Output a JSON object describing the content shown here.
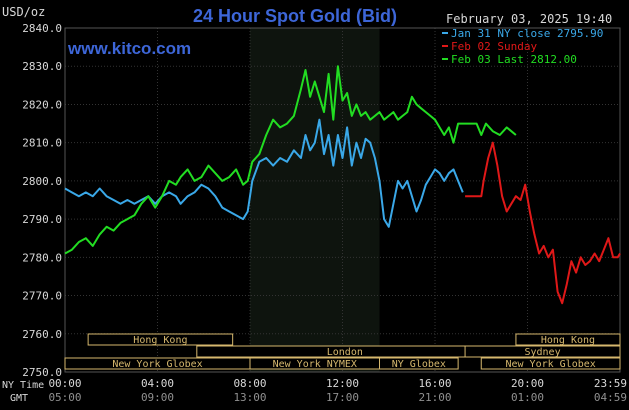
{
  "header": {
    "title": "24 Hour Spot Gold (Bid)",
    "date": "February 03, 2025 19:40",
    "watermark": "www.kitco.com",
    "units": "USD/oz"
  },
  "legend": [
    {
      "label": "Jan 31 NY close 2795.90",
      "color": "#3aa8e8"
    },
    {
      "label": "Feb 02 Sunday",
      "color": "#e01818"
    },
    {
      "label": "Feb 03 Last 2812.00",
      "color": "#22dd22"
    }
  ],
  "axis_labels": {
    "nytime": "NY Time",
    "gmt": "GMT"
  },
  "markets": [
    {
      "name": "Hong Kong",
      "start": 1.0,
      "end": 7.25
    },
    {
      "name": "Hong Kong",
      "start": 19.5,
      "end": 24.0
    },
    {
      "name": "London",
      "start": 5.7,
      "end": 18.5
    },
    {
      "name": "Sydney",
      "start": 17.3,
      "end": 24.0
    },
    {
      "name": "New York Globex",
      "start": 0.0,
      "end": 8.0
    },
    {
      "name": "New York NYMEX",
      "start": 8.0,
      "end": 13.6
    },
    {
      "name": "NY Globex",
      "start": 13.6,
      "end": 17.0
    },
    {
      "name": "New York Globex",
      "start": 18.0,
      "end": 24.0
    }
  ],
  "colors": {
    "background": "#000000",
    "plot_bg": "#000000",
    "shade": "#0e140e",
    "grid": "#333333",
    "text": "#d8d8d8",
    "title": "#3d66d8",
    "watermark": "#3d66d8",
    "market_box": "#d6b86e"
  },
  "chart_data": {
    "type": "line",
    "title": "24 Hour Spot Gold (Bid)",
    "ylabel": "USD/oz",
    "ylim": [
      2750,
      2840
    ],
    "yticks": [
      2750,
      2760,
      2770,
      2780,
      2790,
      2800,
      2810,
      2820,
      2830,
      2840
    ],
    "ytick_labels": [
      "2750.0",
      "2760.0",
      "2770.0",
      "2780.0",
      "2790.0",
      "2800.0",
      "2810.0",
      "2820.0",
      "2830.0",
      "2840.0"
    ],
    "xlim": [
      0,
      24
    ],
    "xticks": [
      0,
      4,
      8,
      12,
      16,
      20,
      24
    ],
    "xtick_labels_ny": [
      "00:00",
      "04:00",
      "08:00",
      "12:00",
      "16:00",
      "20:00",
      "23:59"
    ],
    "xtick_labels_gmt": [
      "05:00",
      "09:00",
      "13:00",
      "17:00",
      "21:00",
      "01:00",
      "04:59"
    ],
    "shaded_range": [
      8.0,
      13.6
    ],
    "grid": true,
    "series": [
      {
        "name": "Jan 31 NY close 2795.90",
        "color": "#3aa8e8",
        "points": [
          [
            0,
            2798
          ],
          [
            0.3,
            2797
          ],
          [
            0.6,
            2796
          ],
          [
            0.9,
            2797
          ],
          [
            1.2,
            2796
          ],
          [
            1.5,
            2798
          ],
          [
            1.8,
            2796
          ],
          [
            2.1,
            2795
          ],
          [
            2.4,
            2794
          ],
          [
            2.7,
            2795
          ],
          [
            3.0,
            2794
          ],
          [
            3.3,
            2795
          ],
          [
            3.6,
            2796
          ],
          [
            3.9,
            2794
          ],
          [
            4.2,
            2796
          ],
          [
            4.5,
            2797
          ],
          [
            4.8,
            2796
          ],
          [
            5.0,
            2794
          ],
          [
            5.3,
            2796
          ],
          [
            5.6,
            2797
          ],
          [
            5.9,
            2799
          ],
          [
            6.2,
            2798
          ],
          [
            6.5,
            2796
          ],
          [
            6.8,
            2793
          ],
          [
            7.1,
            2792
          ],
          [
            7.4,
            2791
          ],
          [
            7.7,
            2790
          ],
          [
            7.9,
            2792
          ],
          [
            8.1,
            2800
          ],
          [
            8.4,
            2805
          ],
          [
            8.7,
            2806
          ],
          [
            9.0,
            2804
          ],
          [
            9.3,
            2806
          ],
          [
            9.6,
            2805
          ],
          [
            9.9,
            2808
          ],
          [
            10.2,
            2806
          ],
          [
            10.4,
            2812
          ],
          [
            10.6,
            2808
          ],
          [
            10.8,
            2810
          ],
          [
            11.0,
            2816
          ],
          [
            11.2,
            2807
          ],
          [
            11.4,
            2812
          ],
          [
            11.6,
            2804
          ],
          [
            11.8,
            2812
          ],
          [
            12.0,
            2806
          ],
          [
            12.2,
            2814
          ],
          [
            12.4,
            2804
          ],
          [
            12.6,
            2810
          ],
          [
            12.8,
            2806
          ],
          [
            13.0,
            2811
          ],
          [
            13.2,
            2810
          ],
          [
            13.4,
            2806
          ],
          [
            13.6,
            2800
          ],
          [
            13.8,
            2790
          ],
          [
            14.0,
            2788
          ],
          [
            14.2,
            2794
          ],
          [
            14.4,
            2800
          ],
          [
            14.6,
            2798
          ],
          [
            14.8,
            2800
          ],
          [
            15.0,
            2796
          ],
          [
            15.2,
            2792
          ],
          [
            15.4,
            2795
          ],
          [
            15.6,
            2799
          ],
          [
            15.8,
            2801
          ],
          [
            16.0,
            2803
          ],
          [
            16.2,
            2802
          ],
          [
            16.4,
            2800
          ],
          [
            16.6,
            2802
          ],
          [
            16.8,
            2803
          ],
          [
            17.0,
            2800
          ],
          [
            17.2,
            2797
          ]
        ]
      },
      {
        "name": "Feb 02 Sunday",
        "color": "#e01818",
        "points": [
          [
            17.3,
            2796
          ],
          [
            17.7,
            2796
          ],
          [
            18.0,
            2796
          ],
          [
            18.1,
            2800
          ],
          [
            18.3,
            2806
          ],
          [
            18.5,
            2810
          ],
          [
            18.7,
            2804
          ],
          [
            18.9,
            2796
          ],
          [
            19.1,
            2792
          ],
          [
            19.3,
            2794
          ],
          [
            19.5,
            2796
          ],
          [
            19.7,
            2795
          ],
          [
            19.9,
            2799
          ],
          [
            20.1,
            2792
          ],
          [
            20.3,
            2786
          ],
          [
            20.5,
            2781
          ],
          [
            20.7,
            2783
          ],
          [
            20.9,
            2780
          ],
          [
            21.1,
            2782
          ],
          [
            21.3,
            2771
          ],
          [
            21.5,
            2768
          ],
          [
            21.7,
            2773
          ],
          [
            21.9,
            2779
          ],
          [
            22.1,
            2776
          ],
          [
            22.3,
            2780
          ],
          [
            22.5,
            2778
          ],
          [
            22.7,
            2779
          ],
          [
            22.9,
            2781
          ],
          [
            23.1,
            2779
          ],
          [
            23.3,
            2782
          ],
          [
            23.5,
            2785
          ],
          [
            23.7,
            2780
          ],
          [
            23.9,
            2780
          ],
          [
            24.0,
            2781
          ]
        ]
      },
      {
        "name": "Feb 03 Last 2812.00",
        "color": "#22dd22",
        "points": [
          [
            0,
            2781
          ],
          [
            0.3,
            2782
          ],
          [
            0.6,
            2784
          ],
          [
            0.9,
            2785
          ],
          [
            1.2,
            2783
          ],
          [
            1.5,
            2786
          ],
          [
            1.8,
            2788
          ],
          [
            2.1,
            2787
          ],
          [
            2.4,
            2789
          ],
          [
            2.7,
            2790
          ],
          [
            3.0,
            2791
          ],
          [
            3.3,
            2794
          ],
          [
            3.6,
            2796
          ],
          [
            3.9,
            2793
          ],
          [
            4.2,
            2796
          ],
          [
            4.5,
            2800
          ],
          [
            4.8,
            2799
          ],
          [
            5.0,
            2801
          ],
          [
            5.3,
            2803
          ],
          [
            5.6,
            2800
          ],
          [
            5.9,
            2801
          ],
          [
            6.2,
            2804
          ],
          [
            6.5,
            2802
          ],
          [
            6.8,
            2800
          ],
          [
            7.1,
            2801
          ],
          [
            7.4,
            2803
          ],
          [
            7.7,
            2799
          ],
          [
            7.9,
            2800
          ],
          [
            8.1,
            2805
          ],
          [
            8.4,
            2807
          ],
          [
            8.7,
            2812
          ],
          [
            9.0,
            2816
          ],
          [
            9.3,
            2814
          ],
          [
            9.6,
            2815
          ],
          [
            9.9,
            2817
          ],
          [
            10.2,
            2824
          ],
          [
            10.4,
            2829
          ],
          [
            10.6,
            2822
          ],
          [
            10.8,
            2826
          ],
          [
            11.0,
            2822
          ],
          [
            11.2,
            2818
          ],
          [
            11.4,
            2828
          ],
          [
            11.6,
            2816
          ],
          [
            11.8,
            2830
          ],
          [
            12.0,
            2821
          ],
          [
            12.2,
            2823
          ],
          [
            12.4,
            2817
          ],
          [
            12.6,
            2820
          ],
          [
            12.8,
            2817
          ],
          [
            13.0,
            2818
          ],
          [
            13.2,
            2816
          ],
          [
            13.4,
            2817
          ],
          [
            13.6,
            2818
          ],
          [
            13.8,
            2816
          ],
          [
            14.0,
            2817
          ],
          [
            14.2,
            2818
          ],
          [
            14.4,
            2816
          ],
          [
            14.6,
            2817
          ],
          [
            14.8,
            2818
          ],
          [
            15.0,
            2822
          ],
          [
            15.2,
            2820
          ],
          [
            15.4,
            2819
          ],
          [
            15.6,
            2818
          ],
          [
            15.8,
            2817
          ],
          [
            16.0,
            2816
          ],
          [
            16.2,
            2814
          ],
          [
            16.4,
            2812
          ],
          [
            16.6,
            2814
          ],
          [
            16.8,
            2810
          ],
          [
            17.0,
            2815
          ],
          [
            17.2,
            2815
          ],
          [
            17.6,
            2815
          ],
          [
            17.8,
            2815
          ],
          [
            18.0,
            2812
          ],
          [
            18.2,
            2815
          ],
          [
            18.5,
            2813
          ],
          [
            18.8,
            2812
          ],
          [
            19.1,
            2814
          ],
          [
            19.3,
            2813
          ],
          [
            19.5,
            2812
          ]
        ]
      }
    ]
  }
}
